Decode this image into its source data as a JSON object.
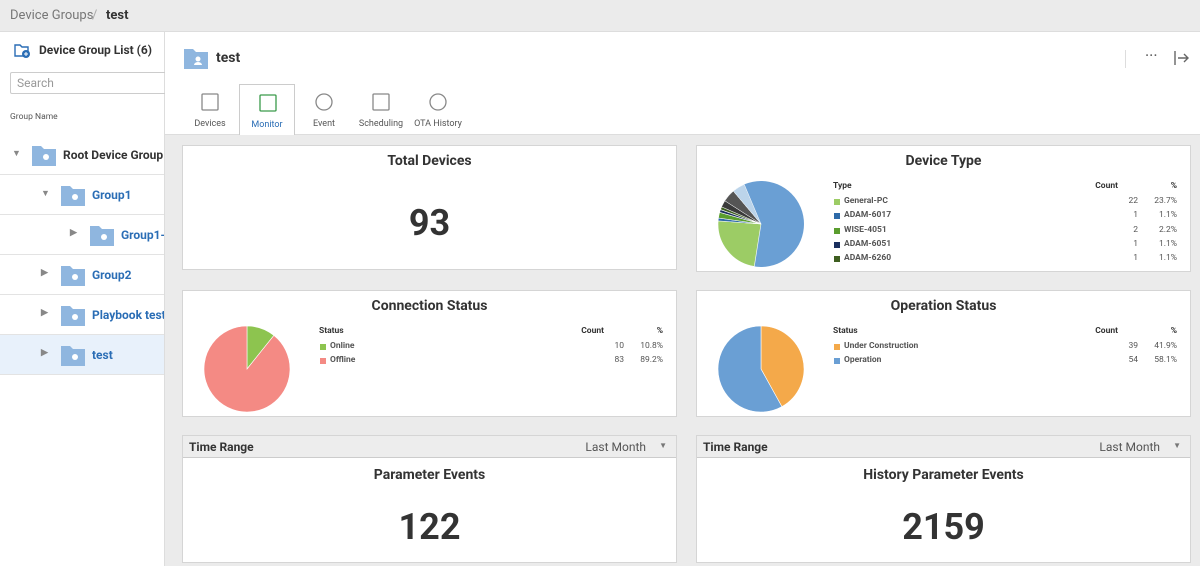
{
  "breadcrumb": [
    "Device Groups",
    "test"
  ],
  "sidebar": {
    "title": "Device Group List (6)",
    "search_placeholder": "Search",
    "column": "Group Name",
    "groups": [
      "Root Device Group",
      "Group1",
      "Group1-",
      "Group2",
      "Playbook test",
      "test"
    ]
  },
  "header": {
    "title": "test",
    "tabs": [
      "Devices",
      "Monitor",
      "Event",
      "Scheduling",
      "OTA History"
    ]
  },
  "cards": {
    "total_devices": {
      "title": "Total Devices",
      "value": "93"
    },
    "device_type": {
      "title": "Device Type",
      "columns": [
        "Type",
        "Count",
        "%"
      ],
      "total": 93,
      "rows": [
        {
          "name": "General-PC",
          "count": 22,
          "pct": "23.7%",
          "color": "#9ccc65"
        },
        {
          "name": "ADAM-6017",
          "count": 1,
          "pct": "1.1%",
          "color": "#2e6aa8"
        },
        {
          "name": "WISE-4051",
          "count": 2,
          "pct": "2.2%",
          "color": "#5a9d2e"
        },
        {
          "name": "ADAM-6051",
          "count": 1,
          "pct": "1.1%",
          "color": "#1a2f5e"
        },
        {
          "name": "ADAM-6260",
          "count": 1,
          "pct": "1.1%",
          "color": "#3e5e20"
        }
      ]
    },
    "connection_status": {
      "title": "Connection Status",
      "columns": [
        "Status",
        "Count",
        "%"
      ],
      "rows": [
        {
          "name": "Online",
          "count": 10,
          "pct": "10.8%",
          "color": "#8dc44f"
        },
        {
          "name": "Offline",
          "count": 83,
          "pct": "89.2%",
          "color": "#f48a84"
        }
      ]
    },
    "operation_status": {
      "title": "Operation Status",
      "columns": [
        "Status",
        "Count",
        "%"
      ],
      "rows": [
        {
          "name": "Under Construction",
          "count": 39,
          "pct": "41.9%",
          "color": "#f4a94a"
        },
        {
          "name": "Operation",
          "count": 54,
          "pct": "58.1%",
          "color": "#6a9fd4"
        }
      ]
    },
    "parameter_events": {
      "time_range_label": "Time Range",
      "time_range": "Last Month",
      "title": "Parameter Events",
      "value": "122"
    },
    "history_parameter_events": {
      "time_range_label": "Time Range",
      "time_range": "Last Month",
      "title": "History Parameter Events",
      "value": "2159"
    }
  }
}
